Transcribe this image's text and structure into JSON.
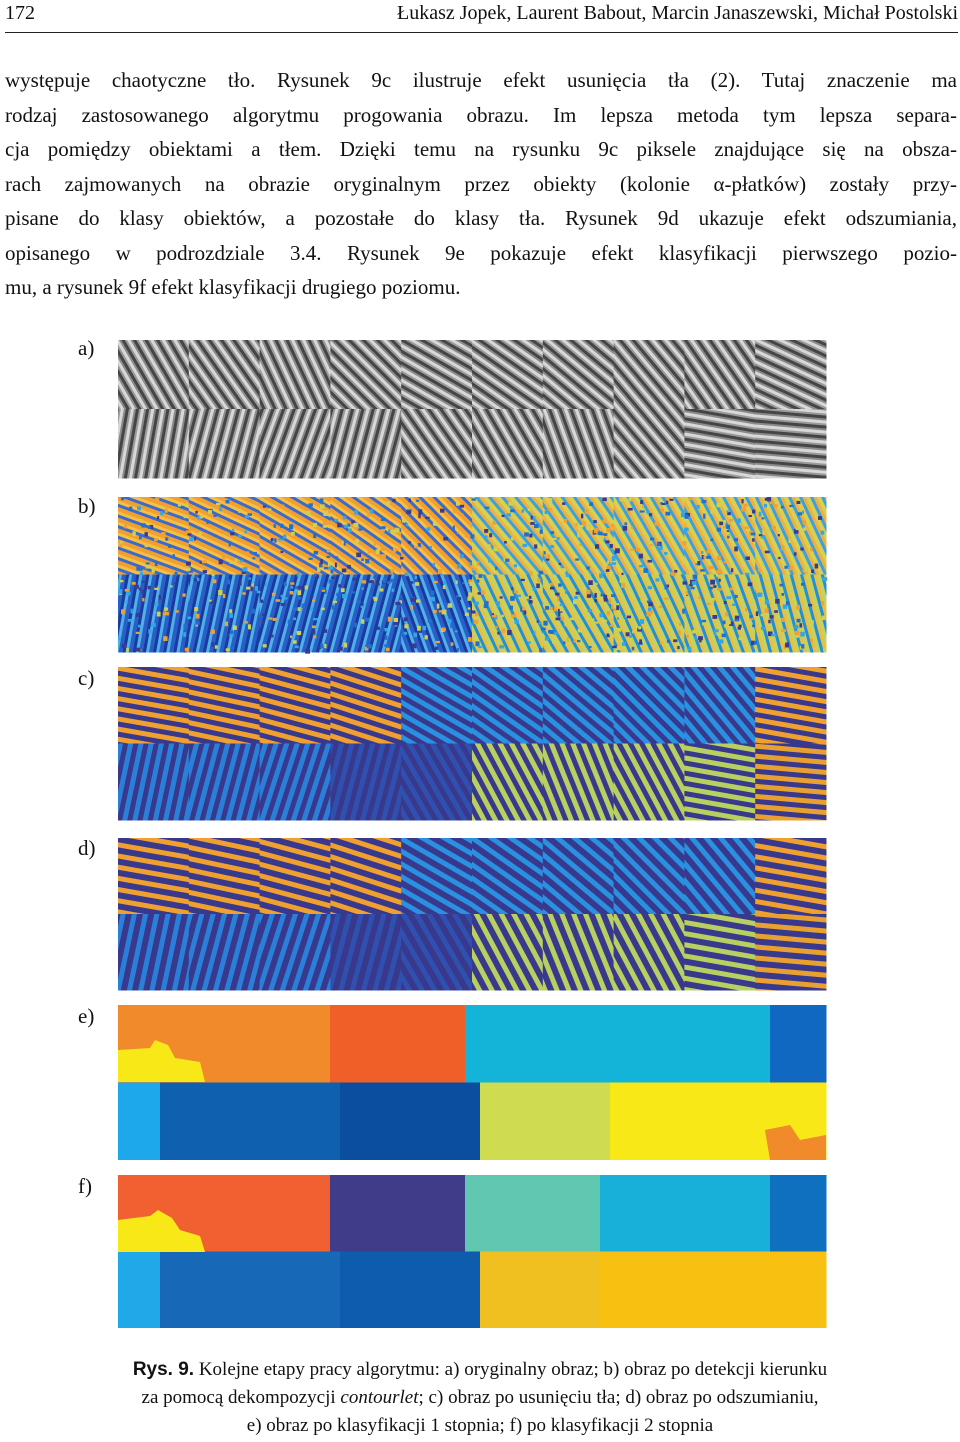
{
  "header": {
    "page_number": "172",
    "authors": "Łukasz Jopek, Laurent Babout, Marcin Janaszewski, Michał Postolski"
  },
  "body": {
    "lines": [
      "występuje chaotyczne tło. Rysunek 9c ilustruje efekt usunięcia tła (2). Tutaj znaczenie ma",
      "rodzaj zastosowanego algorytmu progowania obrazu. Im lepsza metoda tym lepsza separa-",
      "cja pomiędzy obiektami a tłem. Dzięki temu na rysunku 9c piksele znajdujące się na obsza-",
      "rach zajmowanych na obrazie oryginalnym przez obiekty (kolonie α-płatków) zostały przy-",
      "pisane do klasy obiektów, a pozostałe do klasy tła. Rysunek 9d ukazuje efekt odszumiania,",
      "opisanego w podrozdziale 3.4. Rysunek 9e pokazuje efekt klasyfikacji pierwszego pozio-",
      "mu, a rysunek 9f efekt klasyfikacji drugiego poziomu."
    ]
  },
  "figure": {
    "panels": [
      "a)",
      "b)",
      "c)",
      "d)",
      "e)",
      "f)"
    ],
    "caption": {
      "label": "Rys. 9.",
      "line1": " Kolejne etapy pracy algorytmu: a) oryginalny obraz; b) obraz po detekcji kierunku",
      "line2_before": "za pomocą dekompozycji ",
      "line2_italic": "contourlet",
      "line2_after": "; c) obraz po usunięciu tła; d) obraz po odszumianiu,",
      "line3": "e) obraz po klasyfikacji 1 stopnia; f) po klasyfikacji 2 stopnia"
    }
  }
}
